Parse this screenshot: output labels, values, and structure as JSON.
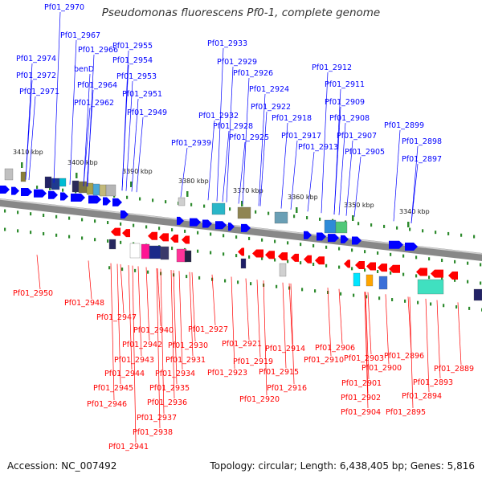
{
  "title": "Pseudomonas fluorescens Pf0-1, complete genome",
  "footer": {
    "accession": "Accession: NC_007492",
    "summary": "Topology: circular; Length: 6,438,405 bp; Genes: 5,816"
  },
  "colors": {
    "forward": "#0000ff",
    "reverse": "#ff0000",
    "backbone": "#888888",
    "tick": "#2e8b2e"
  },
  "ticks": [
    "3410 kbp",
    "3400 kbp",
    "3390 kbp",
    "3380 kbp",
    "3370 kbp",
    "3360 kbp",
    "3350 kbp",
    "3340 kbp"
  ],
  "forward_genes": [
    "Pf01_2970",
    "Pf01_2967",
    "Pf01_2966",
    "Pf01_2974",
    "benD",
    "Pf01_2972",
    "Pf01_2964",
    "Pf01_2971",
    "Pf01_2962",
    "Pf01_2955",
    "Pf01_2954",
    "Pf01_2953",
    "Pf01_2951",
    "Pf01_2949",
    "Pf01_2933",
    "Pf01_2929",
    "Pf01_2926",
    "Pf01_2924",
    "Pf01_2922",
    "Pf01_2932",
    "Pf01_2928",
    "Pf01_2925",
    "Pf01_2939",
    "Pf01_2918",
    "Pf01_2917",
    "Pf01_2912",
    "Pf01_2911",
    "Pf01_2909",
    "Pf01_2908",
    "Pf01_2907",
    "Pf01_2913",
    "Pf01_2905",
    "Pf01_2899",
    "Pf01_2898",
    "Pf01_2897"
  ],
  "reverse_genes": [
    "Pf01_2950",
    "Pf01_2948",
    "Pf01_2947",
    "Pf01_2940",
    "Pf01_2927",
    "Pf01_2942",
    "Pf01_2930",
    "Pf01_2943",
    "Pf01_2931",
    "Pf01_2944",
    "Pf01_2934",
    "Pf01_2945",
    "Pf01_2935",
    "Pf01_2946",
    "Pf01_2936",
    "Pf01_2937",
    "Pf01_2938",
    "Pf01_2941",
    "Pf01_2921",
    "Pf01_2919",
    "Pf01_2923",
    "Pf01_2920",
    "Pf01_2914",
    "Pf01_2915",
    "Pf01_2916",
    "Pf01_2910",
    "Pf01_2906",
    "Pf01_2903",
    "Pf01_2900",
    "Pf01_2901",
    "Pf01_2902",
    "Pf01_2904",
    "Pf01_2896",
    "Pf01_2893",
    "Pf01_2894",
    "Pf01_2895",
    "Pf01_2889"
  ]
}
